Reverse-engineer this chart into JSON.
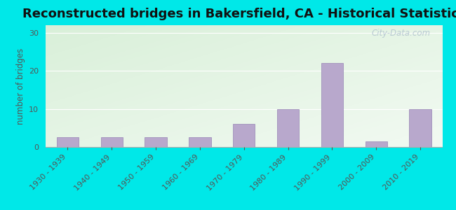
{
  "title": "Reconstructed bridges in Bakersfield, CA - Historical Statistics",
  "categories": [
    "1930 - 1939",
    "1940 - 1949",
    "1950 - 1959",
    "1960 - 1969",
    "1970 - 1979",
    "1980 - 1989",
    "1990 - 1999",
    "2000 - 2009",
    "2010 - 2019"
  ],
  "values": [
    2.5,
    2.5,
    2.5,
    2.5,
    6,
    10,
    22,
    1.5,
    10
  ],
  "bar_color": "#b8a8cc",
  "bar_edge_color": "#a090bb",
  "ylabel": "number of bridges",
  "yticks": [
    0,
    10,
    20,
    30
  ],
  "ylim": [
    0,
    32
  ],
  "background_outer": "#00e8e8",
  "title_fontsize": 13,
  "tick_label_fontsize": 8,
  "ylabel_fontsize": 8.5,
  "watermark": "City-Data.com"
}
